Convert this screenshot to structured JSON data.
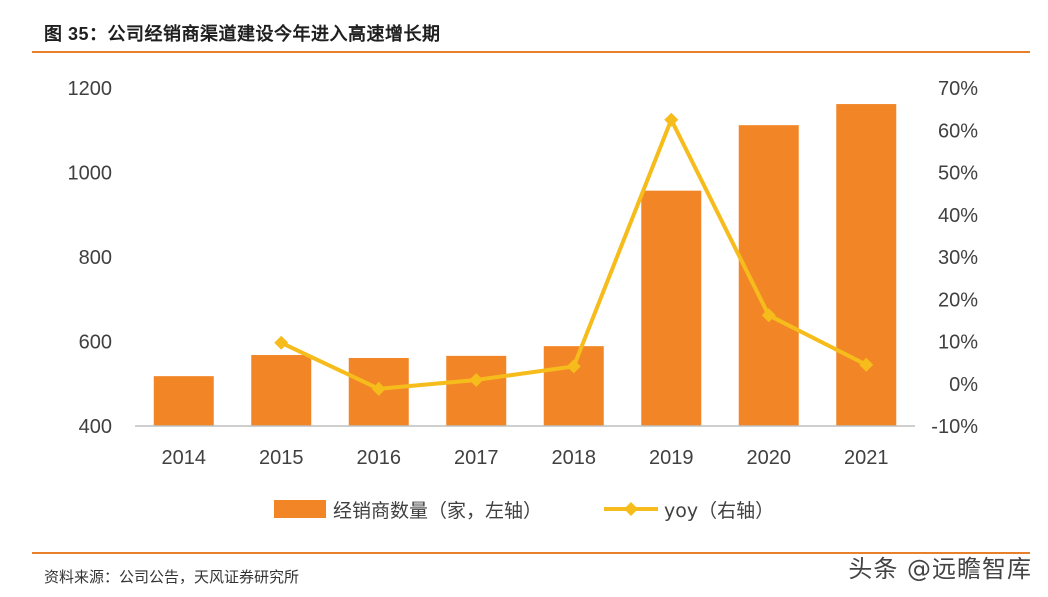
{
  "figure": {
    "title": "图 35：公司经销商渠道建设今年进入高速增长期",
    "source": "资料来源：公司公告，天风证券研究所",
    "watermark": "头条 @远瞻智库"
  },
  "colors": {
    "bar": "#f28627",
    "line": "#f5bc1c",
    "axis": "#bfbfbf",
    "accent_rule": "#e8802a"
  },
  "chart_data": {
    "type": "bar+line",
    "categories": [
      "2014",
      "2015",
      "2016",
      "2017",
      "2018",
      "2019",
      "2020",
      "2021"
    ],
    "series": [
      {
        "name": "经销商数量（家，左轴）",
        "type": "bar",
        "axis": "left",
        "values": [
          518,
          568,
          561,
          566,
          589,
          957,
          1112,
          1162
        ]
      },
      {
        "name": "yoy（右轴）",
        "type": "line",
        "axis": "right",
        "values": [
          null,
          9.7,
          -1.2,
          0.9,
          4.1,
          62.5,
          16.2,
          4.5
        ]
      }
    ],
    "y_left": {
      "min": 400,
      "max": 1200,
      "ticks": [
        "400",
        "600",
        "800",
        "1000",
        "1200"
      ]
    },
    "y_right": {
      "min": -10,
      "max": 70,
      "ticks": [
        "-10%",
        "0%",
        "10%",
        "20%",
        "30%",
        "40%",
        "50%",
        "60%",
        "70%"
      ]
    },
    "grid": false,
    "legend_position": "bottom"
  }
}
